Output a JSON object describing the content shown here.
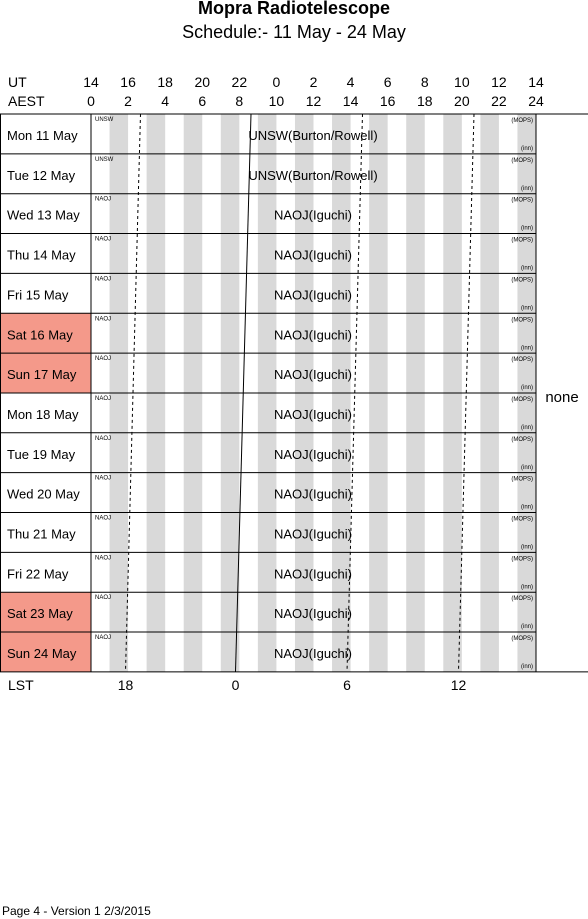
{
  "title": "Mopra Radiotelescope",
  "subtitle": "Schedule:- 11 May - 24 May",
  "axes": {
    "ut_label": "UT",
    "aest_label": "AEST",
    "lst_label": "LST",
    "ut_ticks": [
      "14",
      "16",
      "18",
      "20",
      "22",
      "0",
      "2",
      "4",
      "6",
      "8",
      "10",
      "12",
      "14"
    ],
    "aest_ticks": [
      "0",
      "2",
      "4",
      "6",
      "8",
      "10",
      "12",
      "14",
      "16",
      "18",
      "20",
      "22",
      "24"
    ],
    "lst_ticks": [
      "18",
      "0",
      "6",
      "12"
    ]
  },
  "side_label": "none",
  "mops_label": "(MOPS)",
  "inn_label": "(inn)",
  "weekend_color": "#f4998a",
  "shade_color": "#d9d9d9",
  "days": [
    {
      "day": "Mon",
      "date": "11 May",
      "weekend": false,
      "tag": "UNSW",
      "project": "UNSW(Burton/Rowell)"
    },
    {
      "day": "Tue",
      "date": "12 May",
      "weekend": false,
      "tag": "UNSW",
      "project": "UNSW(Burton/Rowell)"
    },
    {
      "day": "Wed",
      "date": "13 May",
      "weekend": false,
      "tag": "NAOJ",
      "project": "NAOJ(Iguchi)"
    },
    {
      "day": "Thu",
      "date": "14 May",
      "weekend": false,
      "tag": "NAOJ",
      "project": "NAOJ(Iguchi)"
    },
    {
      "day": "Fri",
      "date": "15 May",
      "weekend": false,
      "tag": "NAOJ",
      "project": "NAOJ(Iguchi)"
    },
    {
      "day": "Sat",
      "date": "16 May",
      "weekend": true,
      "tag": "NAOJ",
      "project": "NAOJ(Iguchi)"
    },
    {
      "day": "Sun",
      "date": "17 May",
      "weekend": true,
      "tag": "NAOJ",
      "project": "NAOJ(Iguchi)"
    },
    {
      "day": "Mon",
      "date": "18 May",
      "weekend": false,
      "tag": "NAOJ",
      "project": "NAOJ(Iguchi)"
    },
    {
      "day": "Tue",
      "date": "19 May",
      "weekend": false,
      "tag": "NAOJ",
      "project": "NAOJ(Iguchi)"
    },
    {
      "day": "Wed",
      "date": "20 May",
      "weekend": false,
      "tag": "NAOJ",
      "project": "NAOJ(Iguchi)"
    },
    {
      "day": "Thu",
      "date": "21 May",
      "weekend": false,
      "tag": "NAOJ",
      "project": "NAOJ(Iguchi)"
    },
    {
      "day": "Fri",
      "date": "22 May",
      "weekend": false,
      "tag": "NAOJ",
      "project": "NAOJ(Iguchi)"
    },
    {
      "day": "Sat",
      "date": "23 May",
      "weekend": true,
      "tag": "NAOJ",
      "project": "NAOJ(Iguchi)"
    },
    {
      "day": "Sun",
      "date": "24 May",
      "weekend": true,
      "tag": "NAOJ",
      "project": "NAOJ(Iguchi)"
    }
  ],
  "footer": "Page 4 - Version 1  2/3/2015"
}
